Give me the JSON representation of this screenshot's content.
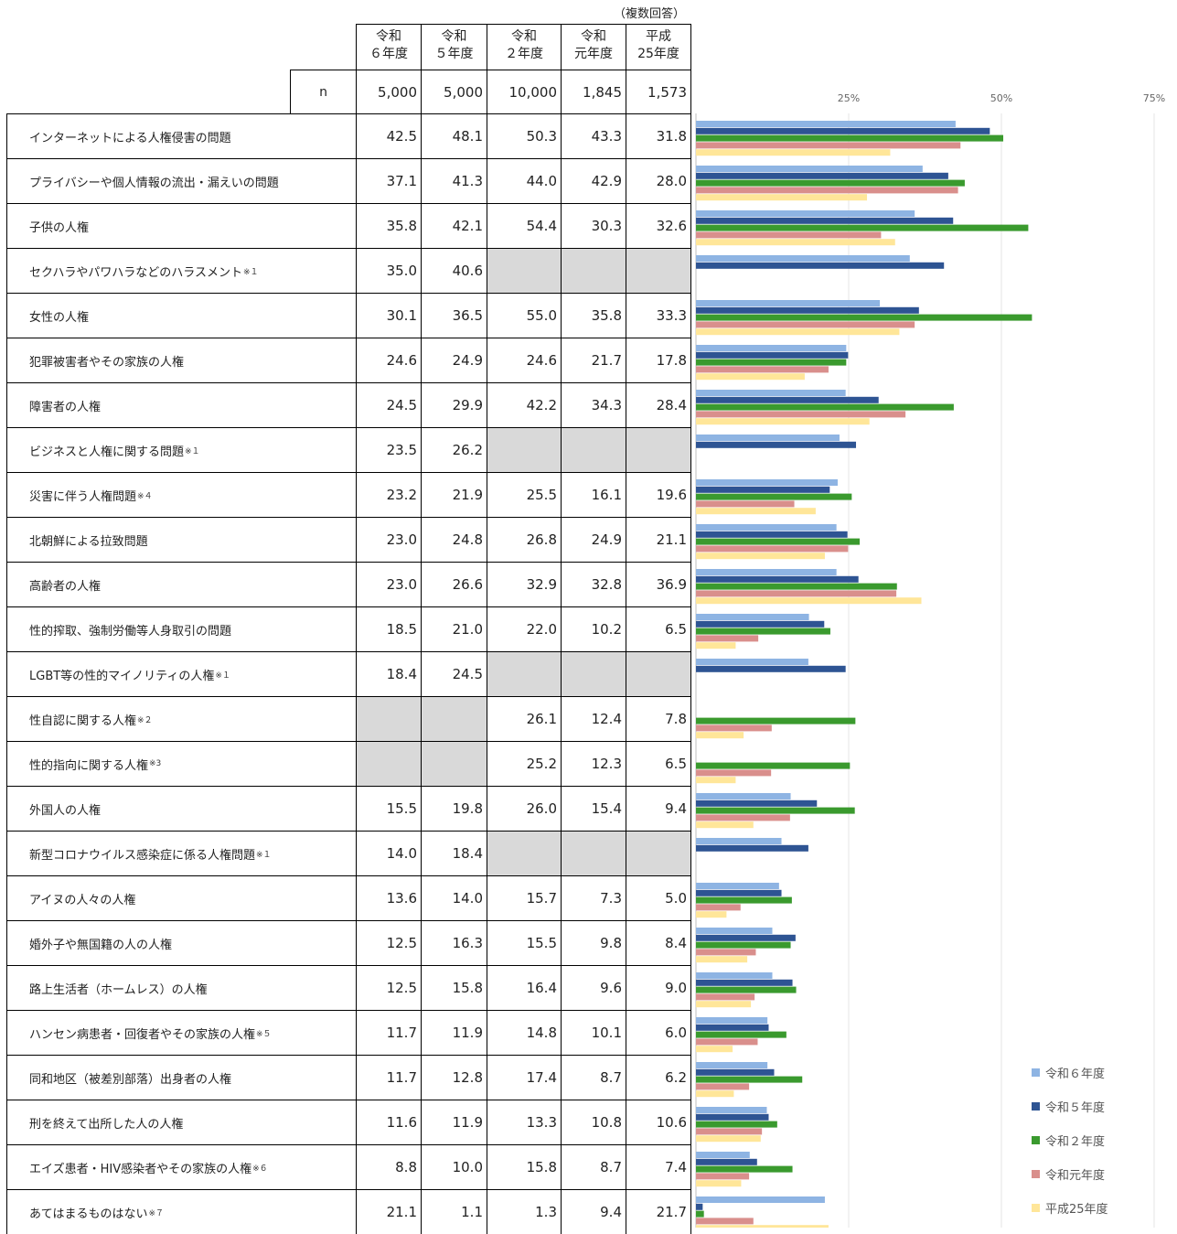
{
  "note": "（複数回答）",
  "header": {
    "columns": [
      "令和\n６年度",
      "令和\n５年度",
      "令和\n２年度",
      "令和\n元年度",
      "平成\n25年度"
    ],
    "n_label": "n",
    "n_values": [
      "5,000",
      "5,000",
      "10,000",
      "1,845",
      "1,573"
    ]
  },
  "rows": [
    {
      "label": "インターネットによる人権侵害の問題",
      "note": "",
      "values": [
        "42.5",
        "48.1",
        "50.3",
        "43.3",
        "31.8"
      ]
    },
    {
      "label": "プライバシーや個人情報の流出・漏えいの問題",
      "note": "",
      "values": [
        "37.1",
        "41.3",
        "44.0",
        "42.9",
        "28.0"
      ]
    },
    {
      "label": "子供の人権",
      "note": "",
      "values": [
        "35.8",
        "42.1",
        "54.4",
        "30.3",
        "32.6"
      ]
    },
    {
      "label": "セクハラやパワハラなどのハラスメント",
      "note": "※１",
      "values": [
        "35.0",
        "40.6",
        null,
        null,
        null
      ]
    },
    {
      "label": "女性の人権",
      "note": "",
      "values": [
        "30.1",
        "36.5",
        "55.0",
        "35.8",
        "33.3"
      ]
    },
    {
      "label": "犯罪被害者やその家族の人権",
      "note": "",
      "values": [
        "24.6",
        "24.9",
        "24.6",
        "21.7",
        "17.8"
      ]
    },
    {
      "label": "障害者の人権",
      "note": "",
      "values": [
        "24.5",
        "29.9",
        "42.2",
        "34.3",
        "28.4"
      ]
    },
    {
      "label": "ビジネスと人権に関する問題",
      "note": "※１",
      "values": [
        "23.5",
        "26.2",
        null,
        null,
        null
      ]
    },
    {
      "label": "災害に伴う人権問題",
      "note": "※４",
      "values": [
        "23.2",
        "21.9",
        "25.5",
        "16.1",
        "19.6"
      ]
    },
    {
      "label": "北朝鮮による拉致問題",
      "note": "",
      "values": [
        "23.0",
        "24.8",
        "26.8",
        "24.9",
        "21.1"
      ]
    },
    {
      "label": "高齢者の人権",
      "note": "",
      "values": [
        "23.0",
        "26.6",
        "32.9",
        "32.8",
        "36.9"
      ]
    },
    {
      "label": "性的搾取、強制労働等人身取引の問題",
      "note": "",
      "values": [
        "18.5",
        "21.0",
        "22.0",
        "10.2",
        "6.5"
      ]
    },
    {
      "label": "LGBT等の性的マイノリティの人権",
      "note": "※１",
      "values": [
        "18.4",
        "24.5",
        null,
        null,
        null
      ]
    },
    {
      "label": "性自認に関する人権",
      "note": "※２",
      "values": [
        null,
        null,
        "26.1",
        "12.4",
        "7.8"
      ]
    },
    {
      "label": "性的指向に関する人権",
      "note": "※3",
      "values": [
        null,
        null,
        "25.2",
        "12.3",
        "6.5"
      ]
    },
    {
      "label": "外国人の人権",
      "note": "",
      "values": [
        "15.5",
        "19.8",
        "26.0",
        "15.4",
        "9.4"
      ]
    },
    {
      "label": "新型コロナウイルス感染症に係る人権問題",
      "note": "※１",
      "values": [
        "14.0",
        "18.4",
        null,
        null,
        null
      ]
    },
    {
      "label": "アイヌの人々の人権",
      "note": "",
      "values": [
        "13.6",
        "14.0",
        "15.7",
        "7.3",
        "5.0"
      ]
    },
    {
      "label": "婚外子や無国籍の人の人権",
      "note": "",
      "values": [
        "12.5",
        "16.3",
        "15.5",
        "9.8",
        "8.4"
      ]
    },
    {
      "label": "路上生活者（ホームレス）の人権",
      "note": "",
      "values": [
        "12.5",
        "15.8",
        "16.4",
        "9.6",
        "9.0"
      ]
    },
    {
      "label": "ハンセン病患者・回復者やその家族の人権",
      "note": "※５",
      "values": [
        "11.7",
        "11.9",
        "14.8",
        "10.1",
        "6.0"
      ]
    },
    {
      "label": "同和地区（被差別部落）出身者の人権",
      "note": "",
      "values": [
        "11.7",
        "12.8",
        "17.4",
        "8.7",
        "6.2"
      ]
    },
    {
      "label": "刑を終えて出所した人の人権",
      "note": "",
      "values": [
        "11.6",
        "11.9",
        "13.3",
        "10.8",
        "10.6"
      ]
    },
    {
      "label": "エイズ患者・HIV感染者やその家族の人権",
      "note": "※６",
      "values": [
        "8.8",
        "10.0",
        "15.8",
        "8.7",
        "7.4"
      ]
    },
    {
      "label": "あてはまるものはない",
      "note": "※７",
      "values": [
        "21.1",
        "1.1",
        "1.3",
        "9.4",
        "21.7"
      ]
    }
  ],
  "chart_data": {
    "type": "bar",
    "orientation": "horizontal",
    "categories": [
      "インターネットによる人権侵害の問題",
      "プライバシーや個人情報の流出・漏えいの問題",
      "子供の人権",
      "セクハラやパワハラなどのハラスメント",
      "女性の人権",
      "犯罪被害者やその家族の人権",
      "障害者の人権",
      "ビジネスと人権に関する問題",
      "災害に伴う人権問題",
      "北朝鮮による拉致問題",
      "高齢者の人権",
      "性的搾取、強制労働等人身取引の問題",
      "LGBT等の性的マイノリティの人権",
      "性自認に関する人権",
      "性的指向に関する人権",
      "外国人の人権",
      "新型コロナウイルス感染症に係る人権問題",
      "アイヌの人々の人権",
      "婚外子や無国籍の人の人権",
      "路上生活者（ホームレス）の人権",
      "ハンセン病患者・回復者やその家族の人権",
      "同和地区（被差別部落）出身者の人権",
      "刑を終えて出所した人の人権",
      "エイズ患者・HIV感染者やその家族の人権",
      "あてはまるものはない"
    ],
    "series": [
      {
        "name": "令和６年度",
        "color": "#8eb4e3",
        "values": [
          42.5,
          37.1,
          35.8,
          35.0,
          30.1,
          24.6,
          24.5,
          23.5,
          23.2,
          23.0,
          23.0,
          18.5,
          18.4,
          null,
          null,
          15.5,
          14.0,
          13.6,
          12.5,
          12.5,
          11.7,
          11.7,
          11.6,
          8.8,
          21.1
        ]
      },
      {
        "name": "令和５年度",
        "color": "#2e5493",
        "values": [
          48.1,
          41.3,
          42.1,
          40.6,
          36.5,
          24.9,
          29.9,
          26.2,
          21.9,
          24.8,
          26.6,
          21.0,
          24.5,
          null,
          null,
          19.8,
          18.4,
          14.0,
          16.3,
          15.8,
          11.9,
          12.8,
          11.9,
          10.0,
          1.1
        ]
      },
      {
        "name": "令和２年度",
        "color": "#3a9a2e",
        "values": [
          50.3,
          44.0,
          54.4,
          null,
          55.0,
          24.6,
          42.2,
          null,
          25.5,
          26.8,
          32.9,
          22.0,
          null,
          26.1,
          25.2,
          26.0,
          null,
          15.7,
          15.5,
          16.4,
          14.8,
          17.4,
          13.3,
          15.8,
          1.3
        ]
      },
      {
        "name": "令和元年度",
        "color": "#d98f8c",
        "values": [
          43.3,
          42.9,
          30.3,
          null,
          35.8,
          21.7,
          34.3,
          null,
          16.1,
          24.9,
          32.8,
          10.2,
          null,
          12.4,
          12.3,
          15.4,
          null,
          7.3,
          9.8,
          9.6,
          10.1,
          8.7,
          10.8,
          8.7,
          9.4
        ]
      },
      {
        "name": "平成25年度",
        "color": "#ffe699",
        "values": [
          31.8,
          28.0,
          32.6,
          null,
          33.3,
          17.8,
          28.4,
          null,
          19.6,
          21.1,
          36.9,
          6.5,
          null,
          7.8,
          6.5,
          9.4,
          null,
          5.0,
          8.4,
          9.0,
          6.0,
          6.2,
          10.6,
          7.4,
          21.7
        ]
      }
    ],
    "xlim": [
      0,
      75
    ],
    "xticks": [
      "25%",
      "50%",
      "75%"
    ],
    "xtick_values": [
      25,
      50,
      75
    ],
    "grid": true,
    "legend_position": "bottom-right"
  }
}
